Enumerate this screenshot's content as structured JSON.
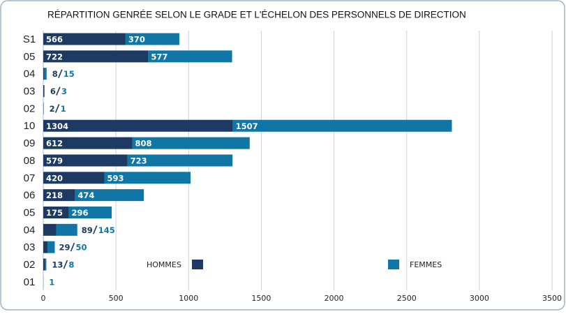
{
  "chart_data": {
    "type": "bar",
    "orientation": "horizontal",
    "stacked": true,
    "title": "RÉPARTITION GENRÉE SELON LE GRADE ET L'ÉCHELON DES PERSONNELS DE DIRECTION",
    "categories": [
      "S1",
      "05",
      "04",
      "03",
      "02",
      "10",
      "09",
      "08",
      "07",
      "06",
      "05",
      "04",
      "03",
      "02",
      "01"
    ],
    "series": [
      {
        "name": "HOMMES",
        "color": "#1d3a63",
        "values": [
          566,
          722,
          8,
          6,
          2,
          1304,
          612,
          579,
          420,
          218,
          175,
          89,
          29,
          13,
          null
        ]
      },
      {
        "name": "FEMMES",
        "color": "#0f76a6",
        "values": [
          370,
          577,
          15,
          3,
          1,
          1507,
          808,
          723,
          593,
          474,
          296,
          145,
          50,
          8,
          1
        ]
      }
    ],
    "xlim": [
      0,
      3500
    ],
    "xticks": [
      0,
      500,
      1000,
      1500,
      2000,
      2500,
      3000,
      3500
    ],
    "grid": true
  }
}
